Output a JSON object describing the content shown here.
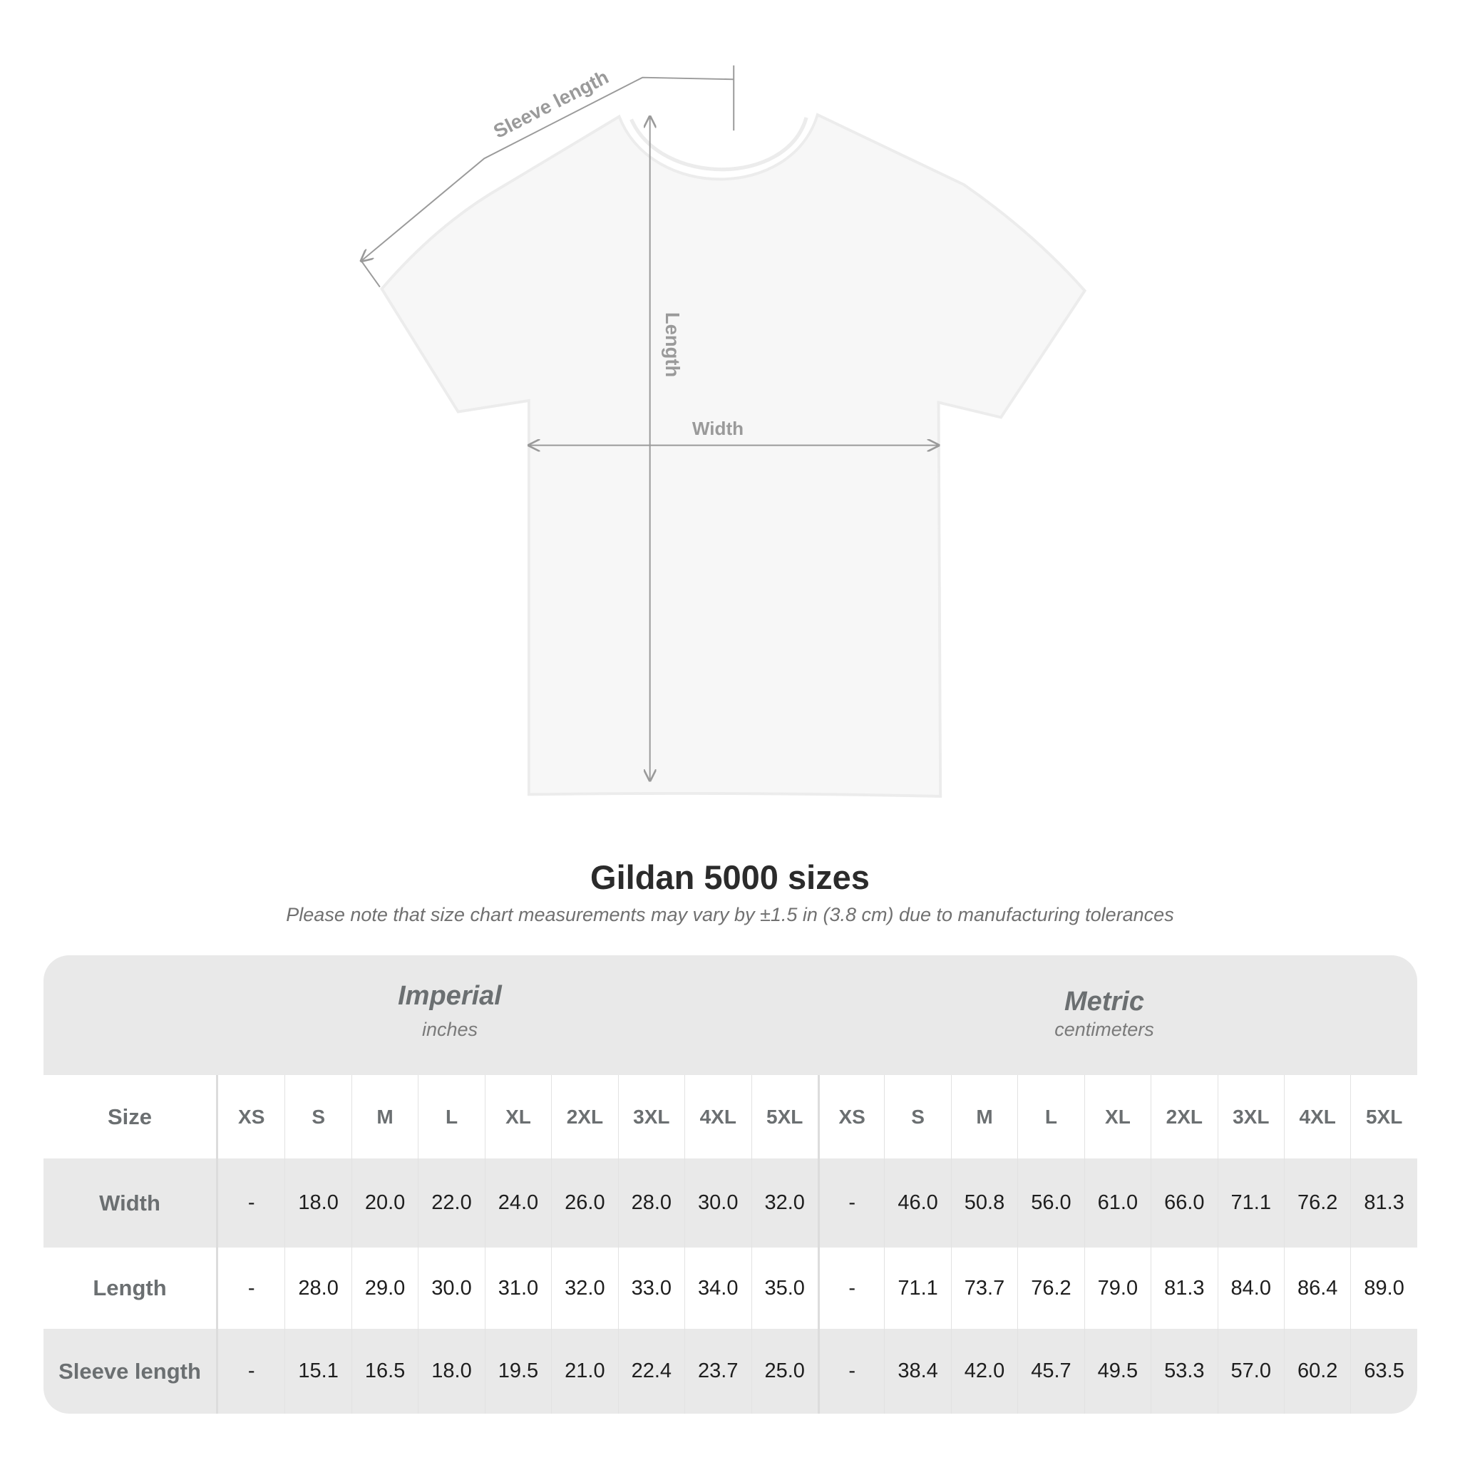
{
  "diagram": {
    "labels": {
      "sleeve": "Sleeve length",
      "length": "Length",
      "width": "Width"
    }
  },
  "title": "Gildan 5000 sizes",
  "subtitle": "Please note that size chart measurements may vary by ±1.5 in (3.8 cm) due to manufacturing tolerances",
  "table": {
    "imperial": {
      "name": "Imperial",
      "unit": "inches"
    },
    "metric": {
      "name": "Metric",
      "unit": "centimeters"
    },
    "size_label": "Size",
    "sizes": [
      "XS",
      "S",
      "M",
      "L",
      "XL",
      "2XL",
      "3XL",
      "4XL",
      "5XL"
    ],
    "rows": [
      {
        "label": "Width",
        "imperial": [
          "-",
          "18.0",
          "20.0",
          "22.0",
          "24.0",
          "26.0",
          "28.0",
          "30.0",
          "32.0"
        ],
        "metric": [
          "-",
          "46.0",
          "50.8",
          "56.0",
          "61.0",
          "66.0",
          "71.1",
          "76.2",
          "81.3"
        ]
      },
      {
        "label": "Length",
        "imperial": [
          "-",
          "28.0",
          "29.0",
          "30.0",
          "31.0",
          "32.0",
          "33.0",
          "34.0",
          "35.0"
        ],
        "metric": [
          "-",
          "71.1",
          "73.7",
          "76.2",
          "79.0",
          "81.3",
          "84.0",
          "86.4",
          "89.0"
        ]
      },
      {
        "label": "Sleeve length",
        "imperial": [
          "-",
          "15.1",
          "16.5",
          "18.0",
          "19.5",
          "21.0",
          "22.4",
          "23.7",
          "25.0"
        ],
        "metric": [
          "-",
          "38.4",
          "42.0",
          "45.7",
          "49.5",
          "53.3",
          "57.0",
          "60.2",
          "63.5"
        ]
      }
    ]
  },
  "colors": {
    "band": "#e9e9e9",
    "header_text": "#6b6f71",
    "value_text": "#1e1e1e",
    "guide_line": "#9a9a9a"
  }
}
